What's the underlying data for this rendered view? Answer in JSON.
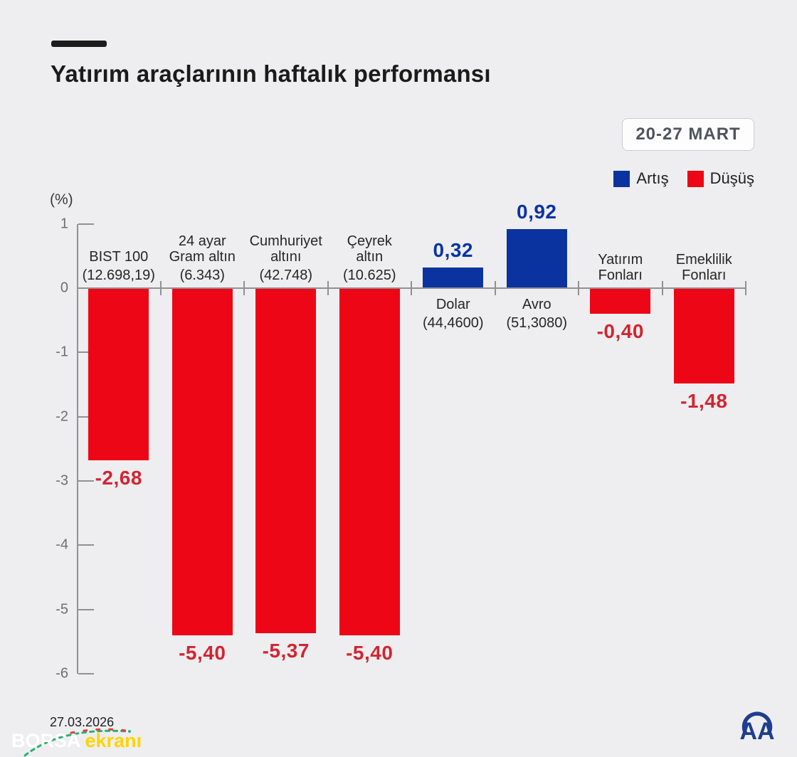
{
  "header": {
    "title": "Yatırım araçlarının haftalık performansı",
    "date_badge": "20-27 MART"
  },
  "legend": [
    {
      "label": "Artış",
      "color": "#0b33a0"
    },
    {
      "label": "Düşüş",
      "color": "#ed0716"
    }
  ],
  "chart_data": {
    "type": "bar",
    "ylabel": "(%)",
    "ylim": [
      -6,
      1
    ],
    "yticks": [
      1,
      0,
      -1,
      -2,
      -3,
      -4,
      -5,
      -6
    ],
    "grid": false,
    "categories": [
      {
        "name": "BIST 100",
        "label_lines": [
          "BIST 100",
          "(12.698,19)"
        ],
        "value": -2.68,
        "value_label": "-2,68"
      },
      {
        "name": "24 ayar Gram altın",
        "label_lines": [
          "24 ayar",
          "Gram altın",
          "(6.343)"
        ],
        "value": -5.4,
        "value_label": "-5,40"
      },
      {
        "name": "Cumhuriyet altını",
        "label_lines": [
          "Cumhuriyet",
          "altını",
          "(42.748)"
        ],
        "value": -5.37,
        "value_label": "-5,37"
      },
      {
        "name": "Çeyrek altın",
        "label_lines": [
          "Çeyrek",
          "altın",
          "(10.625)"
        ],
        "value": -5.4,
        "value_label": "-5,40"
      },
      {
        "name": "Dolar",
        "label_lines": [
          "Dolar",
          "(44,4600)"
        ],
        "value": 0.32,
        "value_label": "0,32"
      },
      {
        "name": "Avro",
        "label_lines": [
          "Avro",
          "(51,3080)"
        ],
        "value": 0.92,
        "value_label": "0,92"
      },
      {
        "name": "Yatırım Fonları",
        "label_lines": [
          "Yatırım",
          "Fonları"
        ],
        "value": -0.4,
        "value_label": "-0,40"
      },
      {
        "name": "Emeklilik Fonları",
        "label_lines": [
          "Emeklilik",
          "Fonları"
        ],
        "value": -1.48,
        "value_label": "-1,48"
      }
    ],
    "colors": {
      "up_bar": "#0b33a0",
      "down_bar": "#ed0716",
      "up_value_text": "#0b34a2",
      "down_value_text": "#d32431",
      "axis": "#8f9193"
    }
  },
  "footer": {
    "date": "27.03.2026",
    "watermark_part1": "BORSA",
    "watermark_part2": "ekranı",
    "agency_logo": "AA"
  }
}
